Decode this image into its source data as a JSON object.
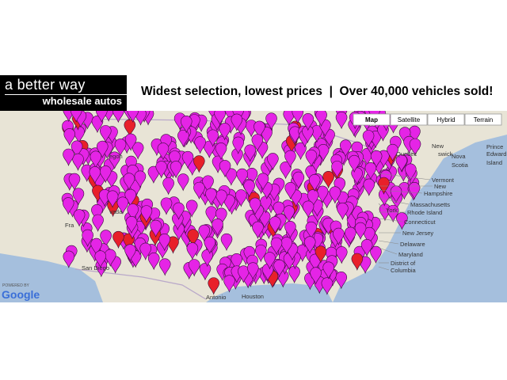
{
  "header": {
    "brand_line1": "a better way",
    "brand_line2": "wholesale autos",
    "tagline": "Widest selection, lowest prices  |  Over 40,000 vehicles sold!"
  },
  "map": {
    "controls": [
      "Map",
      "Satellite",
      "Hybrid",
      "Terrain"
    ],
    "labels": [
      "Quebec",
      "New",
      "swick",
      "Prince",
      "Edward",
      "Island",
      "Nova",
      "Scotia",
      "Vermont",
      "New",
      "Hampshire",
      "Massachusetts",
      "Rhode Island",
      "Connecticut",
      "York",
      "New Jersey",
      "Delaware",
      "Maryland",
      "District of",
      "Columbia",
      "egon",
      "vada",
      "Fra",
      "San Diego",
      "Antonio",
      "Houston"
    ],
    "attribution": {
      "powered": "POWERED BY",
      "logo": "Google"
    }
  }
}
